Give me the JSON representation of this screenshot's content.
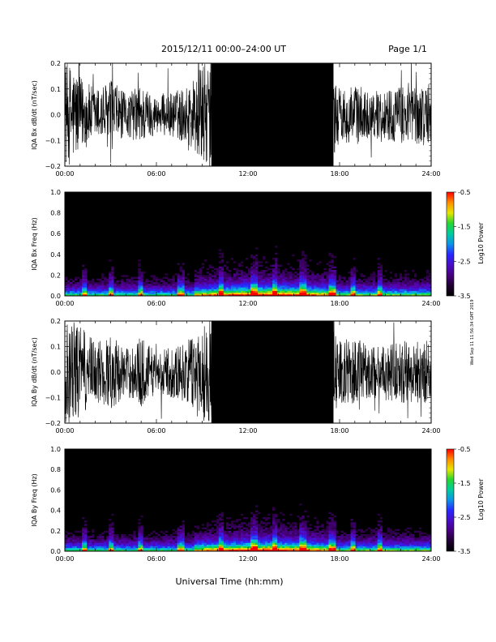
{
  "header": {
    "title": "2015/12/11   00:00–24:00 UT",
    "page": "Page 1/1"
  },
  "footer": {
    "xlabel": "Universal Time (hh:mm)",
    "side_text": "Wed Sep 11 11:56:34 GMT 2019"
  },
  "chart_data": [
    {
      "type": "line",
      "ylabel": "IQA Bx dB/dt (nT/sec)",
      "ylim": [
        -0.2,
        0.2
      ],
      "yticks": [
        "0.2",
        "0.1",
        "0.0",
        "−0.1",
        "−0.2"
      ],
      "xlim": [
        "00:00",
        "24:00"
      ],
      "xticks": [
        "00:00",
        "06:00",
        "12:00",
        "18:00",
        "24:00"
      ],
      "series": [
        {
          "x_hours": [
            0,
            0.5,
            1,
            2,
            3,
            4,
            5,
            6,
            7,
            8,
            9,
            10,
            12,
            14,
            16,
            17.5,
            18,
            19,
            20,
            21,
            22,
            23,
            24
          ],
          "amplitude": [
            0.2,
            0.2,
            0.15,
            0.1,
            0.14,
            0.08,
            0.12,
            0.07,
            0.09,
            0.11,
            0.2,
            0.2,
            0.2,
            0.2,
            0.2,
            0.2,
            0.1,
            0.12,
            0.09,
            0.1,
            0.11,
            0.12,
            0.12
          ]
        }
      ]
    },
    {
      "type": "heatmap",
      "ylabel": "IQA Bx Freq (Hz)",
      "ylim": [
        0.0,
        1.0
      ],
      "yticks": [
        "1.0",
        "0.8",
        "0.6",
        "0.4",
        "0.2",
        "0.0"
      ],
      "xticks": [
        "00:00",
        "06:00",
        "12:00",
        "18:00",
        "24:00"
      ],
      "colorbar": {
        "label": "Log10 Power",
        "ticks": [
          "-0.5",
          "-1.5",
          "-2.5",
          "-3.5"
        ],
        "range": [
          -3.5,
          -0.5
        ]
      }
    },
    {
      "type": "line",
      "ylabel": "IQA By dB/dt (nT/sec)",
      "ylim": [
        -0.2,
        0.2
      ],
      "yticks": [
        "0.2",
        "0.1",
        "0.0",
        "−0.1",
        "−0.2"
      ],
      "xticks": [
        "00:00",
        "06:00",
        "12:00",
        "18:00",
        "24:00"
      ],
      "series": [
        {
          "x_hours": [
            0,
            0.5,
            1,
            2,
            3,
            4,
            5,
            6,
            7,
            8,
            9,
            10,
            12,
            14,
            16,
            17.5,
            18,
            19,
            20,
            21,
            22,
            23,
            24
          ],
          "amplitude": [
            0.2,
            0.2,
            0.18,
            0.12,
            0.15,
            0.09,
            0.14,
            0.08,
            0.1,
            0.12,
            0.2,
            0.2,
            0.2,
            0.2,
            0.2,
            0.2,
            0.12,
            0.14,
            0.1,
            0.11,
            0.12,
            0.13,
            0.13
          ]
        }
      ]
    },
    {
      "type": "heatmap",
      "ylabel": "IQA By Freq (Hz)",
      "ylim": [
        0.0,
        1.0
      ],
      "yticks": [
        "1.0",
        "0.8",
        "0.6",
        "0.4",
        "0.2",
        "0.0"
      ],
      "xticks": [
        "00:00",
        "06:00",
        "12:00",
        "18:00",
        "24:00"
      ],
      "colorbar": {
        "label": "Log10 Power",
        "ticks": [
          "-0.5",
          "-1.5",
          "-2.5",
          "-3.5"
        ],
        "range": [
          -3.5,
          -0.5
        ]
      }
    }
  ]
}
